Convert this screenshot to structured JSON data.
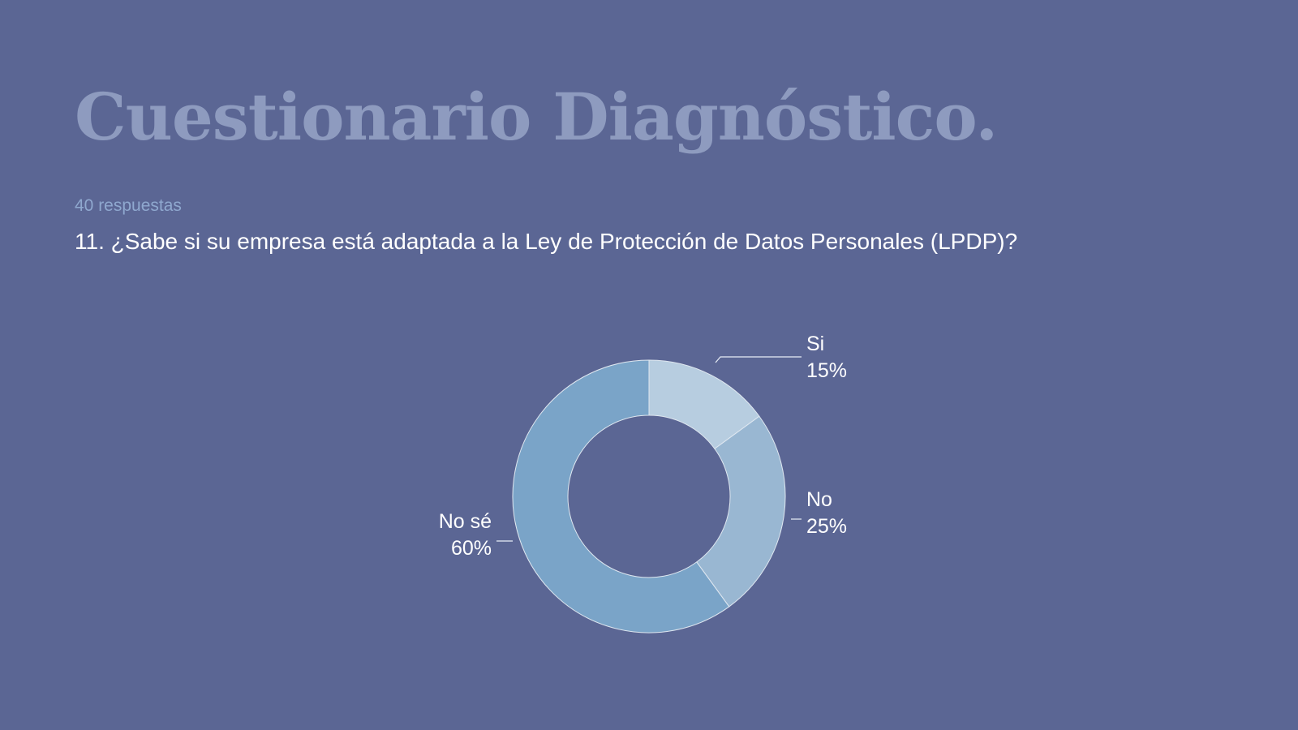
{
  "slide": {
    "title": "Cuestionario Diagnóstico.",
    "response_count": "40 respuestas",
    "question": "11. ¿Sabe si su empresa está adaptada a la Ley de Protección de Datos Personales (LPDP)?"
  },
  "chart_data": {
    "type": "pie",
    "donut": true,
    "categories": [
      "Si",
      "No",
      "No sé"
    ],
    "values": [
      15,
      25,
      60
    ],
    "labels": [
      {
        "name": "Si",
        "percent": "15%"
      },
      {
        "name": "No",
        "percent": "25%"
      },
      {
        "name": "No sé",
        "percent": "60%"
      }
    ],
    "colors": [
      "#b7cde0",
      "#99b7d2",
      "#7aa4c8"
    ],
    "legend": "none",
    "title": ""
  }
}
